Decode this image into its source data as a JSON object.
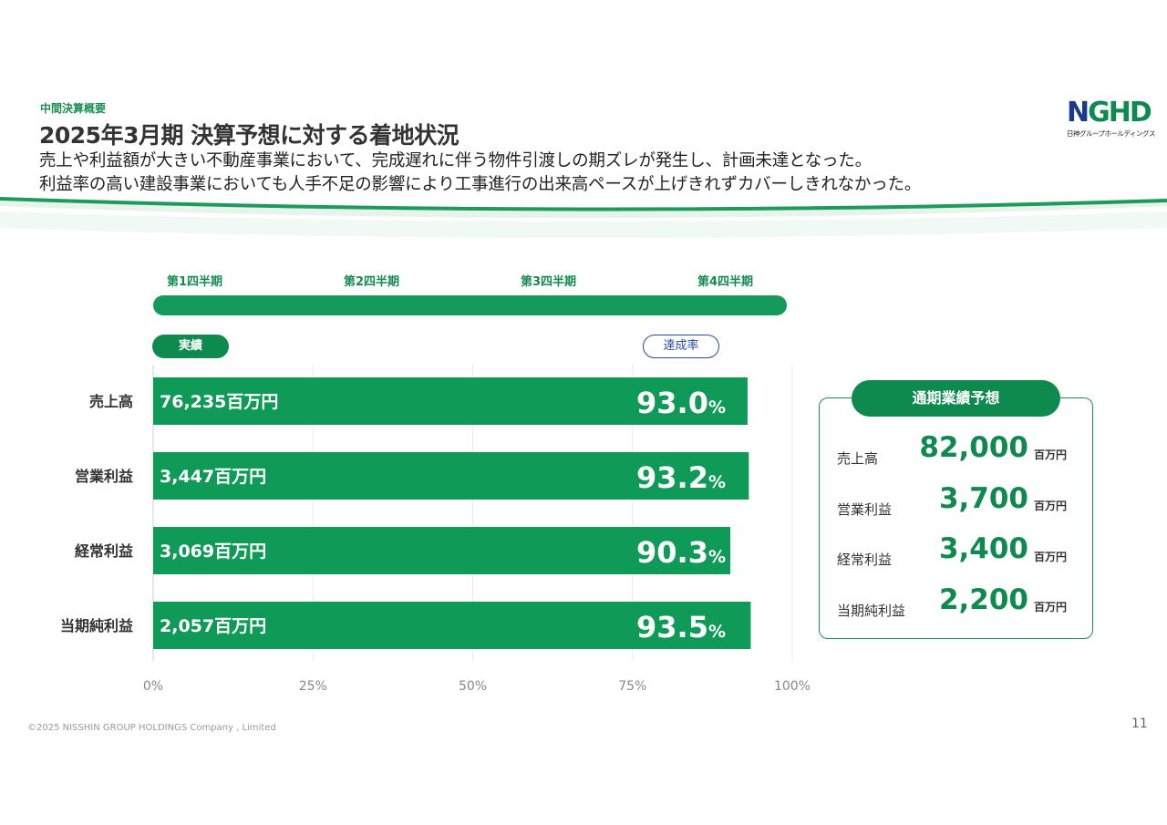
{
  "header": {
    "section_label": "中間決算概要",
    "title": "2025年3月期 決算予想に対する着地状況",
    "subtitle_line1": "売上や利益額が大きい不動産事業において、完成遅れに伴う物件引渡しの期ズレが発生し、計画未達となった。",
    "subtitle_line2": "利益率の高い建設事業においても人手不足の影響により工事進行の出来高ペースが上げきれずカバーしきれなかった。"
  },
  "logo": {
    "mark_n": "N",
    "mark_rest": "GHD",
    "sub": "日神グループホールディングス"
  },
  "timeline": {
    "quarters": [
      "第1四半期",
      "第2四半期",
      "第3四半期",
      "第4四半期"
    ],
    "actual_label": "実績",
    "rate_label": "達成率"
  },
  "chart_data": {
    "type": "bar",
    "orientation": "horizontal",
    "categories": [
      "売上高",
      "営業利益",
      "経常利益",
      "当期純利益"
    ],
    "values": [
      93.0,
      93.2,
      90.3,
      93.5
    ],
    "value_labels": [
      "93.0",
      "93.2",
      "90.3",
      "93.5"
    ],
    "value_unit": "%",
    "actuals": [
      "76,235百万円",
      "3,447百万円",
      "3,069百万円",
      "2,057百万円"
    ],
    "xlim": [
      0,
      100
    ],
    "xticks": [
      0,
      25,
      50,
      75,
      100
    ],
    "xtick_labels": [
      "0%",
      "25%",
      "50%",
      "75%",
      "100%"
    ],
    "grid": true,
    "bar_color": "#0f9a58"
  },
  "forecast": {
    "title": "通期業績予想",
    "unit": "百万円",
    "items": [
      {
        "label": "売上高",
        "value": "82,000"
      },
      {
        "label": "営業利益",
        "value": "3,700"
      },
      {
        "label": "経常利益",
        "value": "3,400"
      },
      {
        "label": "当期純利益",
        "value": "2,200"
      }
    ]
  },
  "footer": {
    "copyright": "©2025 NISSHIN GROUP HOLDINGS Company , Limited",
    "page": "11"
  },
  "colors": {
    "accent": "#0f8a4e",
    "blue": "#2a4aa0"
  }
}
